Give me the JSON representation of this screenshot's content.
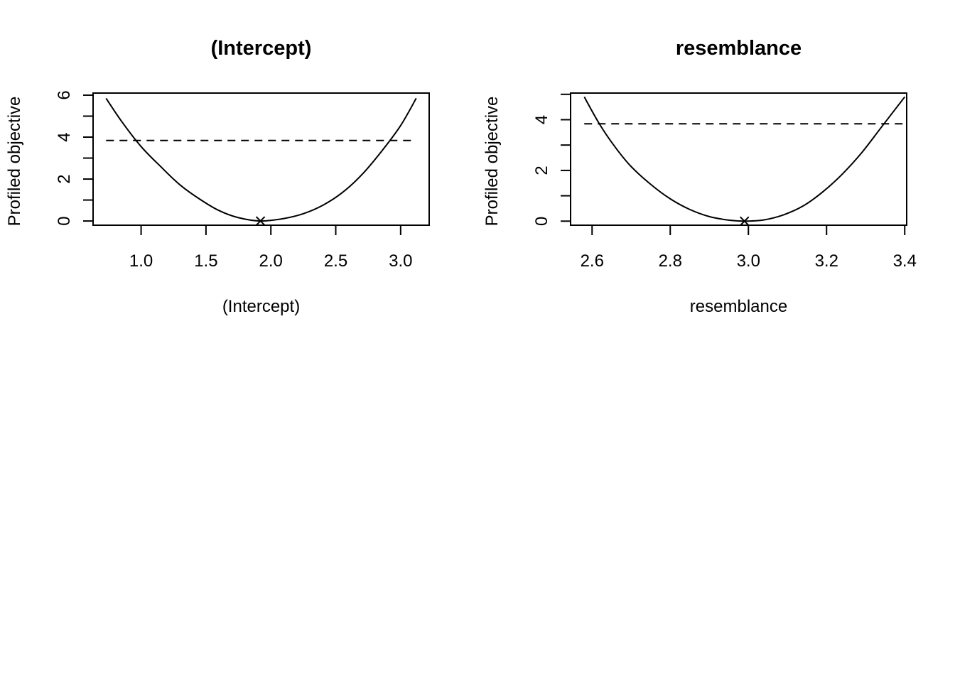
{
  "chart_data": [
    {
      "type": "line",
      "title": "(Intercept)",
      "xlabel": "(Intercept)",
      "ylabel": "Profiled objective",
      "xlim": [
        0.63,
        3.22
      ],
      "ylim": [
        -0.2,
        6.1
      ],
      "xticks": [
        1.0,
        1.5,
        2.0,
        2.5,
        3.0
      ],
      "xtick_labels": [
        "1.0",
        "1.5",
        "2.0",
        "2.5",
        "3.0"
      ],
      "yticks": [
        0,
        1,
        2,
        3,
        4,
        5,
        6
      ],
      "ytick_labels": [
        "0",
        "",
        "2",
        "",
        "4",
        "",
        "6"
      ],
      "series": [
        {
          "x": [
            0.73,
            0.85,
            1.0,
            1.15,
            1.3,
            1.45,
            1.6,
            1.75,
            1.92,
            2.1,
            2.25,
            2.4,
            2.55,
            2.7,
            2.85,
            3.0,
            3.12
          ],
          "y": [
            5.85,
            4.75,
            3.55,
            2.6,
            1.72,
            1.05,
            0.5,
            0.16,
            0.0,
            0.12,
            0.35,
            0.75,
            1.35,
            2.2,
            3.3,
            4.55,
            5.85
          ]
        }
      ],
      "hline": {
        "y": 3.84,
        "x": [
          0.73,
          3.12
        ],
        "style": "dashed"
      },
      "marker": {
        "x": 1.92,
        "y": 0,
        "symbol": "x"
      }
    },
    {
      "type": "line",
      "title": "resemblance",
      "xlabel": "resemblance",
      "ylabel": "Profiled objective",
      "xlim": [
        2.545,
        3.405
      ],
      "ylim": [
        -0.16,
        5.05
      ],
      "xticks": [
        2.6,
        2.8,
        3.0,
        3.2,
        3.4
      ],
      "xtick_labels": [
        "2.6",
        "2.8",
        "3.0",
        "3.2",
        "3.4"
      ],
      "yticks": [
        0,
        1,
        2,
        3,
        4,
        5
      ],
      "ytick_labels": [
        "0",
        "",
        "2",
        "",
        "4",
        ""
      ],
      "series": [
        {
          "x": [
            2.58,
            2.62,
            2.66,
            2.7,
            2.75,
            2.8,
            2.85,
            2.9,
            2.95,
            2.99,
            3.04,
            3.09,
            3.14,
            3.19,
            3.24,
            3.29,
            3.34,
            3.4
          ],
          "y": [
            4.9,
            3.8,
            2.9,
            2.15,
            1.45,
            0.88,
            0.46,
            0.18,
            0.04,
            0.0,
            0.05,
            0.25,
            0.6,
            1.15,
            1.85,
            2.7,
            3.7,
            4.9
          ]
        }
      ],
      "hline": {
        "y": 3.84,
        "x": [
          2.58,
          3.4
        ],
        "style": "dashed"
      },
      "marker": {
        "x": 2.99,
        "y": 0,
        "symbol": "x"
      }
    }
  ]
}
